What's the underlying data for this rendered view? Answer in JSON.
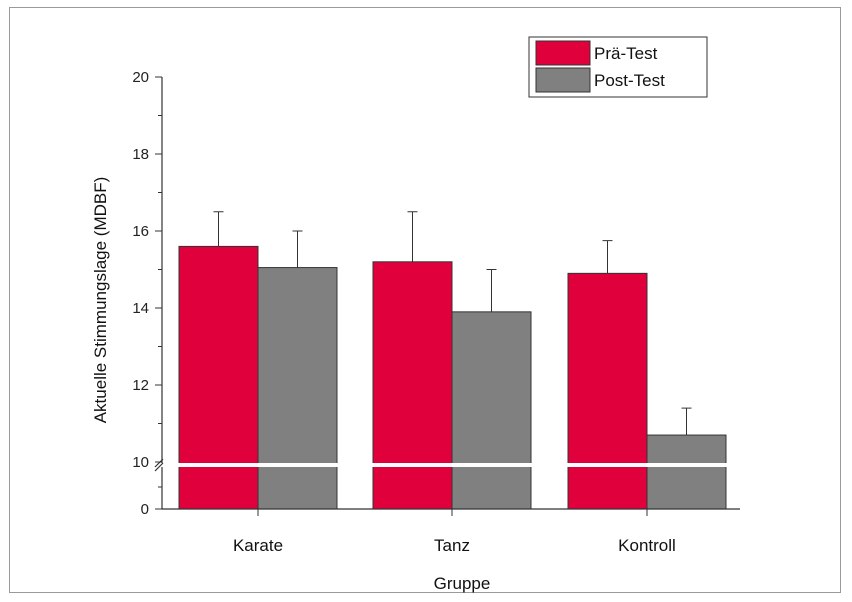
{
  "chart_data": {
    "type": "bar",
    "categories": [
      "Karate",
      "Tanz",
      "Kontroll"
    ],
    "series": [
      {
        "name": "Prä-Test",
        "color": "#e0003c",
        "values": [
          15.6,
          15.2,
          14.9
        ],
        "errors": [
          0.9,
          1.3,
          0.85
        ]
      },
      {
        "name": "Post-Test",
        "color": "#808080",
        "values": [
          15.05,
          13.9,
          10.7
        ],
        "errors": [
          0.95,
          1.1,
          0.7
        ]
      }
    ],
    "xlabel": "Gruppe",
    "ylabel": "Aktuelle Stimmungslage (MDBF)",
    "ylim_upper": [
      10,
      20
    ],
    "ylim_lower": [
      0,
      10
    ],
    "axis_break": true,
    "y_ticks_upper": [
      "10",
      "12",
      "14",
      "16",
      "18",
      "20"
    ],
    "y_ticks_lower": [
      "0"
    ],
    "legend_position": "top-right",
    "grid": false
  }
}
